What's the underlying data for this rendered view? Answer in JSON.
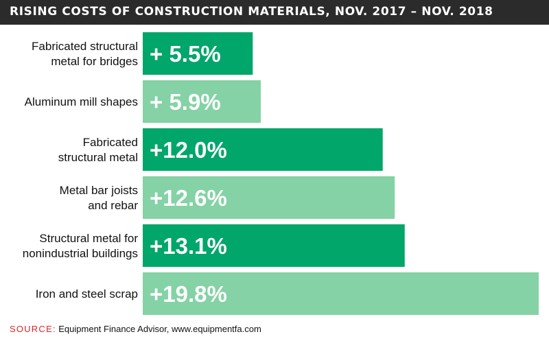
{
  "title": "RISING COSTS OF CONSTRUCTION MATERIALS, NOV. 2017 – NOV. 2018",
  "source": {
    "label": "SOURCE:",
    "text": "Equipment Finance Advisor, www.equipmentfa.com"
  },
  "colors": {
    "dark_green": "#00a66a",
    "light_green": "#84d2a5",
    "title_bg": "#2b2b2b",
    "source_label": "#d9262a"
  },
  "chart_data": {
    "type": "bar",
    "orientation": "horizontal",
    "categories": [
      [
        "Fabricated structural",
        "metal for bridges"
      ],
      [
        "Aluminum mill shapes"
      ],
      [
        "Fabricated",
        "structural metal"
      ],
      [
        "Metal bar joists",
        "and rebar"
      ],
      [
        "Structural metal for",
        "nonindustrial buildings"
      ],
      [
        "Iron and steel scrap"
      ]
    ],
    "values": [
      5.5,
      5.9,
      12.0,
      12.6,
      13.1,
      19.8
    ],
    "data_labels": [
      "+  5.5%",
      "+  5.9%",
      "+12.0%",
      "+12.6%",
      "+13.1%",
      "+19.8%"
    ],
    "bar_colors": [
      "#00a66a",
      "#84d2a5",
      "#00a66a",
      "#84d2a5",
      "#00a66a",
      "#84d2a5"
    ],
    "unit": "%",
    "xlim": [
      0,
      19.8
    ],
    "grid": false,
    "legend": false
  }
}
